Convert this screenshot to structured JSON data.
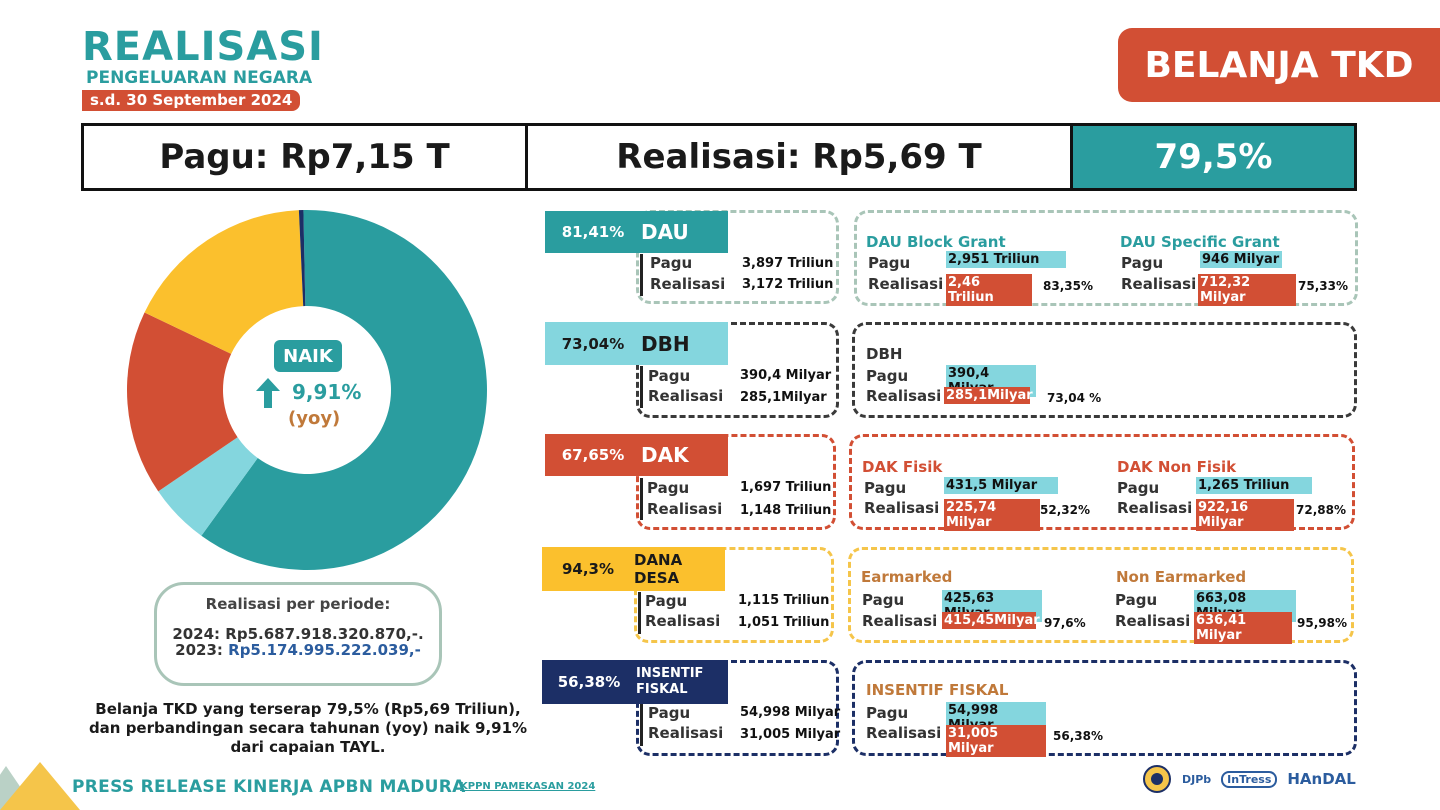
{
  "header": {
    "title": "REALISASI",
    "subtitle": "PENGELUARAN NEGARA",
    "date": "s.d. 30 September 2024",
    "banner": "BELANJA TKD"
  },
  "summary": {
    "pagu": "Pagu: Rp7,15 T",
    "realisasi": "Realisasi: Rp5,69 T",
    "percent": "79,5%"
  },
  "donut": {
    "naik_label": "NAIK",
    "yoy_value": "9,91%",
    "yoy_label": "(yoy)",
    "segments": [
      {
        "share": 0.603,
        "color": "#2a9d9f"
      },
      {
        "share": 0.055,
        "color": "#84d6de"
      },
      {
        "share": 0.166,
        "color": "#d24f34"
      },
      {
        "share": 0.172,
        "color": "#fbc02d"
      },
      {
        "share": 0.004,
        "color": "#1c2f66"
      }
    ]
  },
  "periode": {
    "heading": "Realisasi per periode:",
    "line_2024": "2024: Rp5.687.918.320.870,-.",
    "line_2023_prefix": "2023: ",
    "line_2023_value": "Rp5.174.995.222.039,-"
  },
  "summary_text": {
    "line1": "Belanja TKD yang terserap 79,5% (Rp5,69 Triliun),",
    "line2": "dan perbandingan secara tahunan (yoy) naik 9,91%",
    "line3": "dari capaian TAYL."
  },
  "footer": {
    "title": "PRESS RELEASE KINERJA APBN MADURA",
    "sub": "KPPN PAMEKASAN 2024",
    "logos": [
      "DJPb",
      "InTress",
      "HAnDAL"
    ]
  },
  "labels": {
    "pagu": "Pagu",
    "realisasi": "Realisasi"
  },
  "rows": {
    "dau": {
      "pct": "81,41%",
      "name": "DAU",
      "pagu": "3,897 Triliun",
      "realisasi": "3,172 Triliun",
      "left_title": "DAU Block Grant",
      "left_pagu": "2,951 Triliun",
      "left_real": "2,46 Triliun",
      "left_pct": "83,35%",
      "right_title": "DAU Specific Grant",
      "right_pagu": "946 Milyar",
      "right_real": "712,32 Milyar",
      "right_pct": "75,33%"
    },
    "dbh": {
      "pct": "73,04%",
      "name": "DBH",
      "pagu": "390,4 Milyar",
      "realisasi": "285,1Milyar",
      "left_title": "DBH",
      "left_pagu": "390,4 Milyar",
      "left_real": "285,1Milyar",
      "left_pct": "73,04 %"
    },
    "dak": {
      "pct": "67,65%",
      "name": "DAK",
      "pagu": "1,697 Triliun",
      "realisasi": "1,148 Triliun",
      "left_title": "DAK Fisik",
      "left_pagu": "431,5 Milyar",
      "left_real": "225,74 Milyar",
      "left_pct": "52,32%",
      "right_title": "DAK Non Fisik",
      "right_pagu": "1,265 Triliun",
      "right_real": "922,16 Milyar",
      "right_pct": "72,88%"
    },
    "desa": {
      "pct": "94,3%",
      "name1": "DANA",
      "name2": "DESA",
      "pagu": "1,115 Triliun",
      "realisasi": "1,051 Triliun",
      "left_title": "Earmarked",
      "left_pagu": "425,63 Milyar",
      "left_real": "415,45Milyar",
      "left_pct": "97,6%",
      "right_title": "Non Earmarked",
      "right_pagu": "663,08 Milyar",
      "right_real": "636,41 Milyar",
      "right_pct": "95,98%"
    },
    "insentif": {
      "pct": "56,38%",
      "name1": "INSENTIF",
      "name2": "FISKAL",
      "pagu": "54,998 Milyar",
      "realisasi": "31,005 Milyar",
      "left_title": "INSENTIF FISKAL",
      "left_pagu": "54,998 Milyar",
      "left_real": "31,005 Milyar",
      "left_pct": "56,38%"
    }
  },
  "colors": {
    "teal": "#2a9d9f",
    "light_teal": "#84d6de",
    "red": "#d24f34",
    "yellow": "#fbc02d",
    "navy": "#1c2f66",
    "gray_border": "#a9c5b8",
    "dark_border": "#3a3a3a"
  }
}
